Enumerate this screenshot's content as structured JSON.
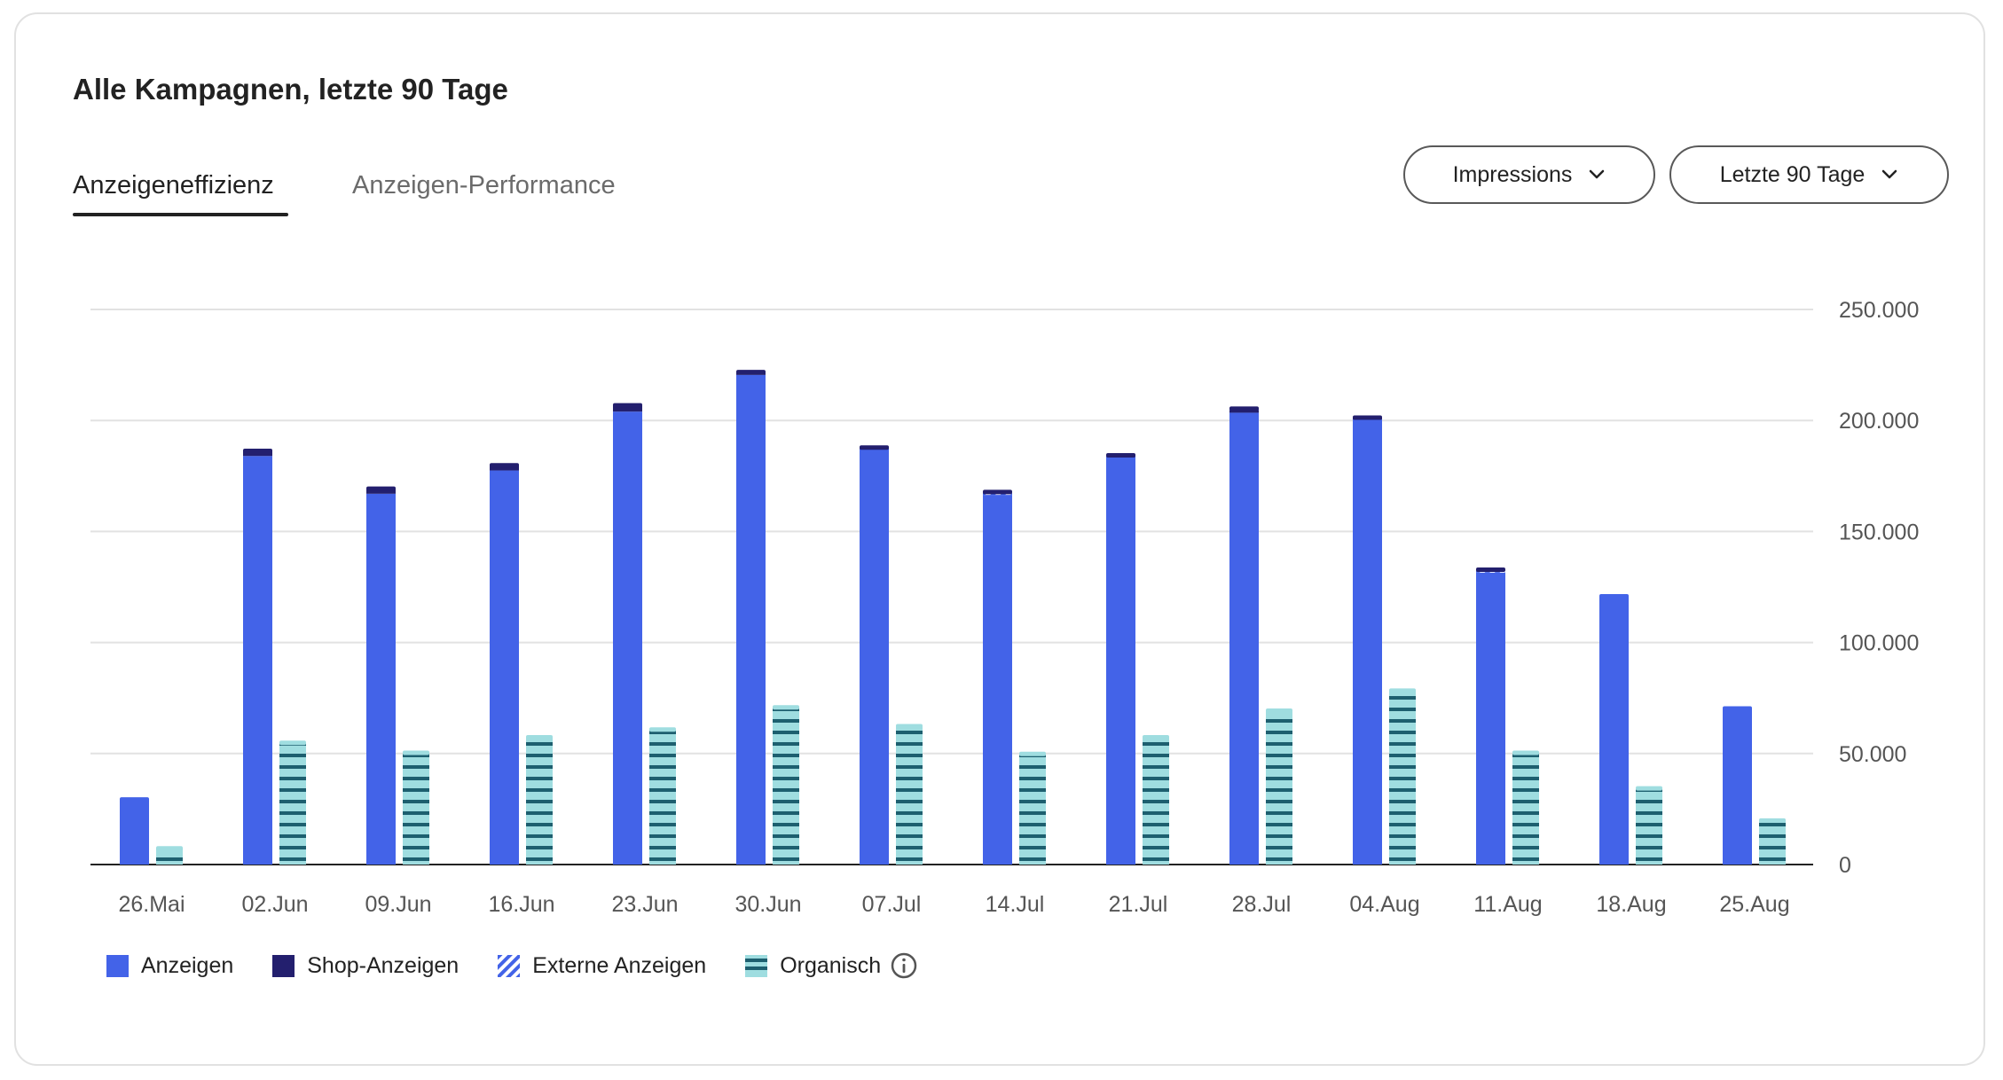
{
  "header": {
    "title": "Alle Kampagnen, letzte 90 Tage"
  },
  "tabs": [
    {
      "label": "Anzeigeneffizienz",
      "active": true
    },
    {
      "label": "Anzeigen-Performance",
      "active": false
    }
  ],
  "dropdowns": {
    "metric": "Impressions",
    "range": "Letzte 90 Tage"
  },
  "colors": {
    "anzeigen": "#4363e8",
    "shop": "#231f6e",
    "extern": "#a7c4f2",
    "organisch_fill": "#9fdde0",
    "organisch_stripe": "#1d5f6f",
    "grid": "#e2e2e2",
    "axis": "#222222"
  },
  "legend": [
    {
      "label": "Anzeigen",
      "icon": "solid-blue-square"
    },
    {
      "label": "Shop-Anzeigen",
      "icon": "solid-navy-square"
    },
    {
      "label": "Externe Anzeigen",
      "icon": "diagonal-striped-square"
    },
    {
      "label": "Organisch",
      "icon": "horizontal-striped-square",
      "info": "info-icon"
    }
  ],
  "chart_data": {
    "type": "bar",
    "categories": [
      "26.Mai",
      "02.Jun",
      "09.Jun",
      "16.Jun",
      "23.Jun",
      "30.Jun",
      "07.Jul",
      "14.Jul",
      "21.Jul",
      "28.Jul",
      "04.Aug",
      "11.Aug",
      "18.Aug",
      "25.Aug"
    ],
    "series": [
      {
        "name": "Anzeigen",
        "stack": "paid",
        "values": [
          29500,
          184000,
          167000,
          177500,
          204000,
          220500,
          187500,
          166500,
          184000,
          203500,
          200500,
          131500,
          121000,
          70500
        ]
      },
      {
        "name": "Shop-Anzeigen",
        "stack": "paid",
        "values": [
          0,
          2500,
          2500,
          2500,
          3000,
          1500,
          500,
          0,
          500,
          1000,
          1000,
          0,
          0,
          0
        ]
      },
      {
        "name": "Externe Anzeigen",
        "stack": "paid",
        "values": [
          0,
          0,
          0,
          0,
          0,
          0,
          0,
          1500,
          0,
          1000,
          0,
          1500,
          0,
          0
        ]
      },
      {
        "name": "Organisch",
        "stack": "organic",
        "values": [
          7500,
          55000,
          50500,
          57500,
          61000,
          71000,
          62500,
          50000,
          57500,
          69500,
          78500,
          50500,
          34500,
          20000
        ]
      }
    ],
    "yticks": [
      "250.000",
      "200.000",
      "150.000",
      "100.000",
      "50.000",
      "0"
    ],
    "ytick_values": [
      250000,
      200000,
      150000,
      100000,
      50000,
      0
    ],
    "ylim": [
      0,
      250000
    ],
    "grid": true,
    "y_axis_position": "right",
    "legend_position": "bottom-left"
  }
}
